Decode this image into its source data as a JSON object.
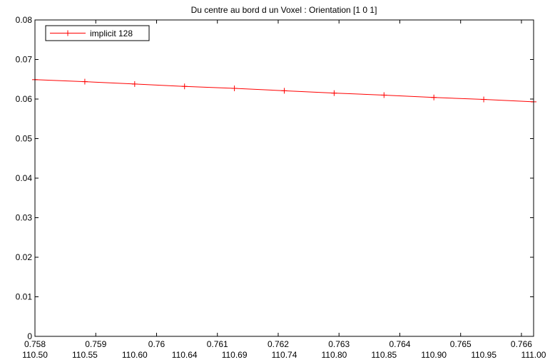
{
  "chart_data": {
    "type": "line",
    "title": "Du centre au bord d un Voxel : Orientation [1 0 1]",
    "xlabel": "",
    "ylabel": "",
    "xlim": [
      0.758,
      0.7662
    ],
    "ylim": [
      0,
      0.08
    ],
    "grid": false,
    "legend": "top-left",
    "x_ticks": [
      0.758,
      0.759,
      0.76,
      0.761,
      0.762,
      0.763,
      0.764,
      0.765,
      0.766
    ],
    "x_tick_labels": [
      "0.758",
      "0.759",
      "0.76",
      "0.761",
      "0.762",
      "0.763",
      "0.764",
      "0.765",
      "0.766"
    ],
    "x_secondary_tick_labels": [
      "110.50",
      "110.55",
      "110.60",
      "110.64",
      "110.69",
      "110.74",
      "110.80",
      "110.85",
      "110.90",
      "110.95",
      "111.00"
    ],
    "y_ticks": [
      0,
      0.01,
      0.02,
      0.03,
      0.04,
      0.05,
      0.06,
      0.07,
      0.08
    ],
    "y_tick_labels": [
      "0",
      "0.01",
      "0.02",
      "0.03",
      "0.04",
      "0.05",
      "0.06",
      "0.07",
      "0.08"
    ],
    "series": [
      {
        "name": "implicit 128",
        "color": "#ff0000",
        "marker": "plus",
        "x": [
          0.758,
          0.75882,
          0.75964,
          0.76046,
          0.76128,
          0.7621,
          0.76292,
          0.76374,
          0.76456,
          0.76538,
          0.7662
        ],
        "y": [
          0.0649,
          0.0644,
          0.0638,
          0.0632,
          0.0627,
          0.0621,
          0.0615,
          0.061,
          0.0604,
          0.0599,
          0.0593
        ]
      }
    ]
  }
}
